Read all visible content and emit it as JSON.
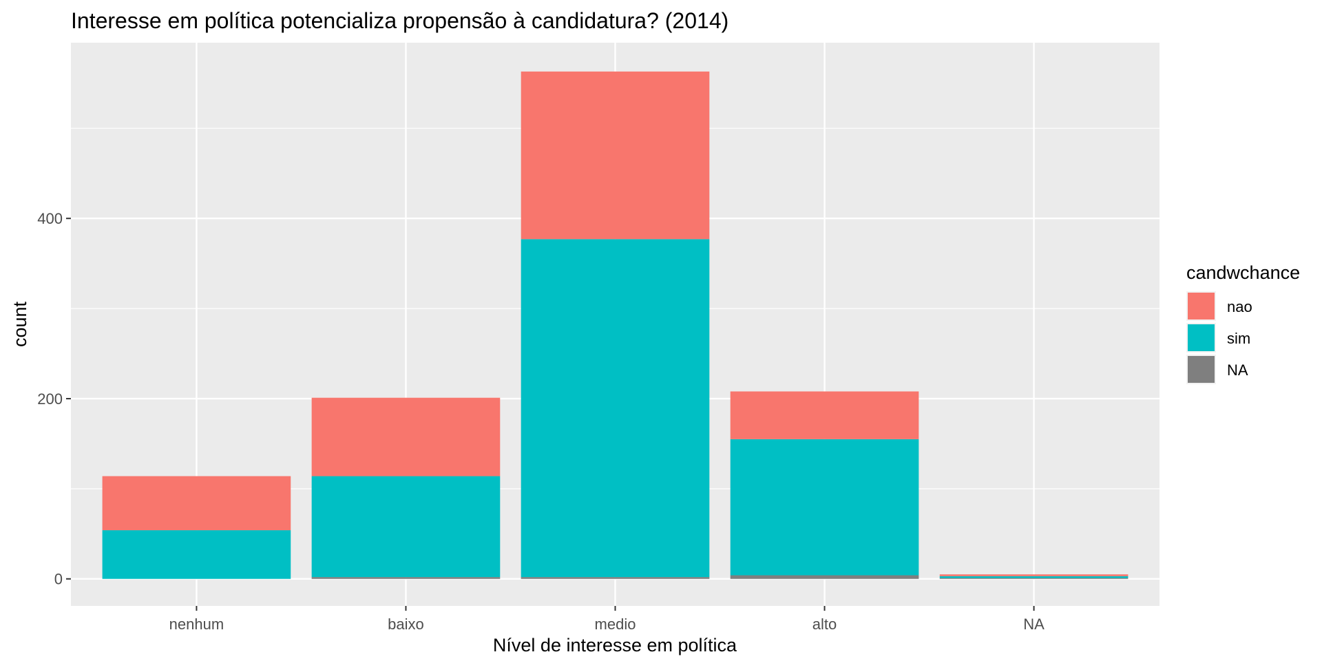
{
  "chart_data": {
    "type": "bar",
    "stacked": true,
    "title": "Interesse em política potencializa propensão à candidatura? (2014)",
    "xlabel": "Nível de interesse em política",
    "ylabel": "count",
    "categories": [
      "nenhum",
      "baixo",
      "medio",
      "alto",
      "NA"
    ],
    "series": [
      {
        "name": "nao",
        "color": "#F8766D",
        "values": [
          60,
          87,
          186,
          53,
          2
        ]
      },
      {
        "name": "sim",
        "color": "#00BFC4",
        "values": [
          54,
          112,
          375,
          151,
          2
        ]
      },
      {
        "name": "NA",
        "color": "#7F7F7F",
        "values": [
          0,
          2,
          2,
          4,
          1
        ]
      }
    ],
    "stack_order_bottom_to_top": [
      "NA",
      "sim",
      "nao"
    ],
    "ylim": [
      -30,
      595
    ],
    "yticks": [
      0,
      200,
      400
    ],
    "grid": true,
    "panel_background": "#EBEBEB",
    "legend": {
      "title": "candwchance",
      "position": "right",
      "entries": [
        "nao",
        "sim",
        "NA"
      ]
    }
  }
}
